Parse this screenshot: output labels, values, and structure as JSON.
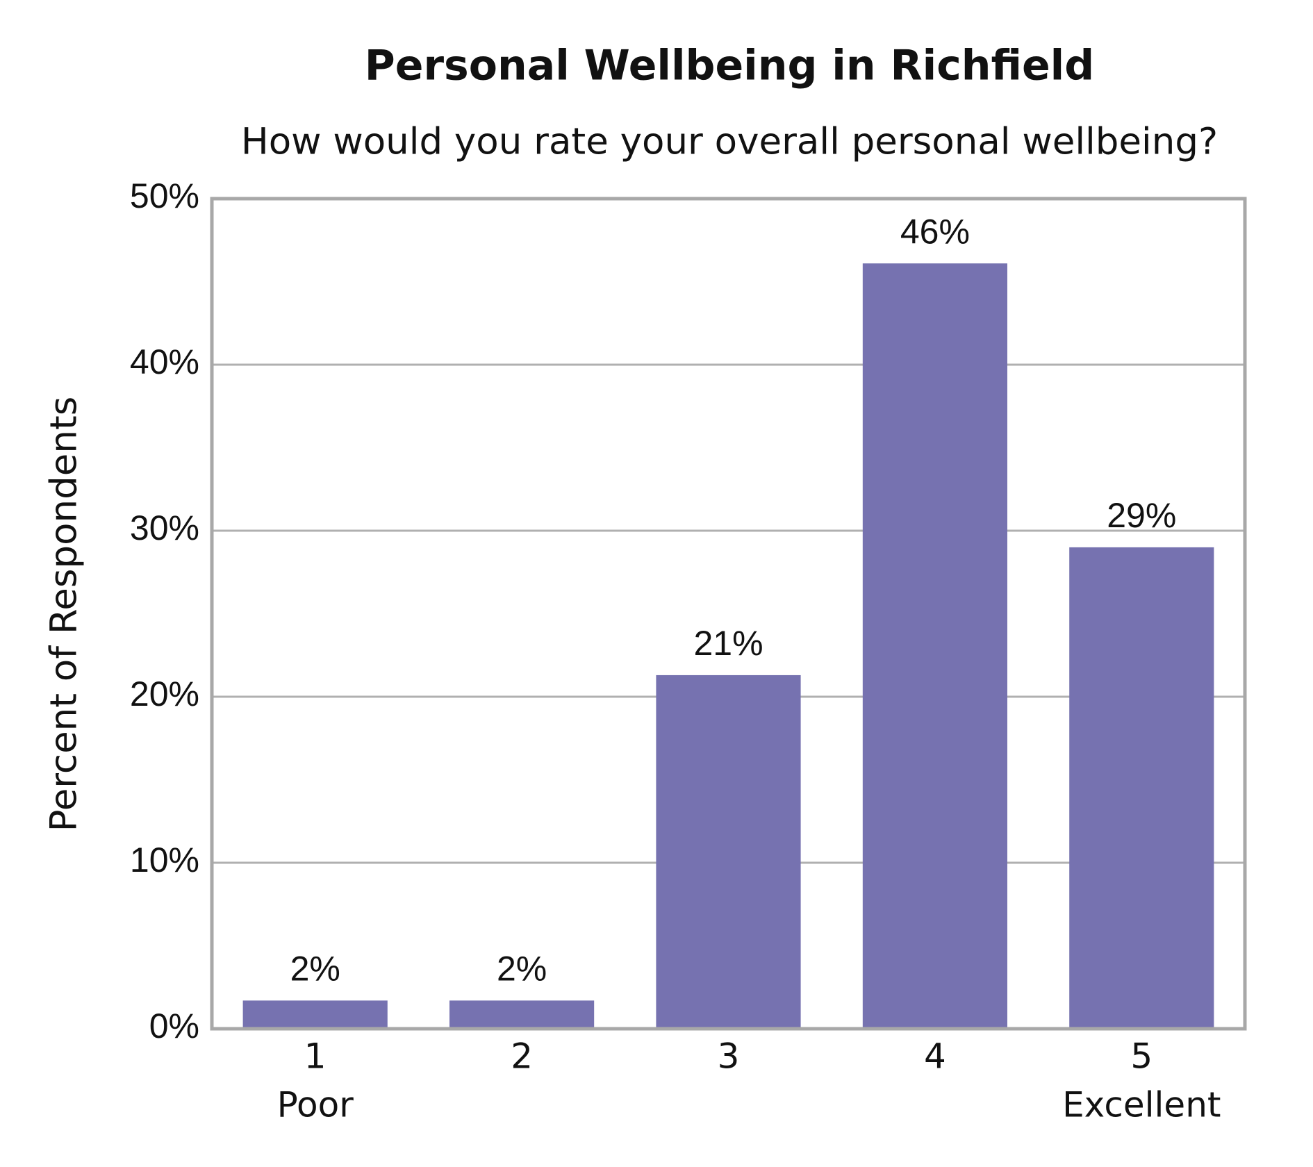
{
  "chart_data": {
    "type": "bar",
    "title": "Personal Wellbeing in Richfield",
    "subtitle": "How would you rate your overall personal wellbeing?",
    "y_label": "Percent of Respondents",
    "categories": [
      "1",
      "2",
      "3",
      "4",
      "5"
    ],
    "category_sublabels": [
      "Poor",
      null,
      null,
      null,
      "Excellent"
    ],
    "values": [
      1.7,
      1.7,
      21.3,
      46.1,
      29.0
    ],
    "value_labels": [
      "2%",
      "2%",
      "21%",
      "46%",
      "29%"
    ],
    "color": "#7672b0",
    "ylim": [
      0,
      50
    ],
    "yticks": [
      {
        "value": 0,
        "label": "0%"
      },
      {
        "value": 10,
        "label": "10%"
      },
      {
        "value": 20,
        "label": "20%"
      },
      {
        "value": 30,
        "label": "30%"
      },
      {
        "value": 40,
        "label": "40%"
      },
      {
        "value": 50,
        "label": "50%"
      }
    ],
    "grid": true
  }
}
